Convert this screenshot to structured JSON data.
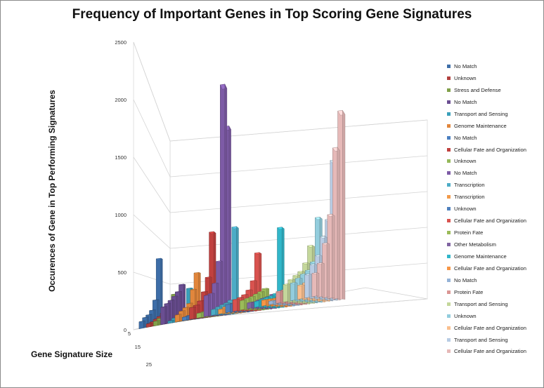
{
  "chart_data": {
    "type": "bar",
    "title": "Frequency of Important Genes in Top Scoring Gene Signatures",
    "ylabel": "Occurences of Gene in Top Performing Signatures",
    "xlabel": "Gene Signature Size",
    "ylim": [
      0,
      2500
    ],
    "grid": true,
    "legend_position": "right",
    "y_ticks": [
      "0",
      "500",
      "1000",
      "1500",
      "2000",
      "2500"
    ],
    "z_ticks": [
      "5",
      "15",
      "25"
    ],
    "series": [
      {
        "name": "No Match",
        "color": "#3e6ea8",
        "values": [
          680,
          250,
          150,
          110,
          90,
          60
        ]
      },
      {
        "name": "Unknown",
        "color": "#b2403e",
        "values": [
          160,
          110,
          80,
          60,
          40,
          30
        ]
      },
      {
        "name": "Stress and Defense",
        "color": "#81a04a",
        "values": [
          290,
          150,
          120,
          90,
          60,
          40
        ]
      },
      {
        "name": "No Match",
        "color": "#6a4e92",
        "values": [
          380,
          300,
          250,
          210,
          180,
          150
        ]
      },
      {
        "name": "Transport and Sensing",
        "color": "#3aa0ba",
        "values": [
          330,
          110,
          80,
          60,
          40,
          20
        ]
      },
      {
        "name": "Genome Maintenance",
        "color": "#e1863c",
        "values": [
          480,
          300,
          160,
          120,
          90,
          60
        ]
      },
      {
        "name": "No Match",
        "color": "#4a7fc0",
        "values": [
          120,
          90,
          70,
          50,
          40,
          30
        ]
      },
      {
        "name": "Cellular Fate and Organization",
        "color": "#c0413f",
        "values": [
          880,
          400,
          250,
          160,
          120,
          100
        ]
      },
      {
        "name": "Unknown",
        "color": "#95b95a",
        "values": [
          140,
          110,
          90,
          70,
          50,
          40
        ]
      },
      {
        "name": "No Match",
        "color": "#7d5ba6",
        "values": [
          1950,
          2290,
          520,
          300,
          200,
          180
        ]
      },
      {
        "name": "Transcription",
        "color": "#4cacc6",
        "values": [
          900,
          140,
          110,
          90,
          70,
          50
        ]
      },
      {
        "name": "Transcription",
        "color": "#f29a4a",
        "values": [
          160,
          120,
          100,
          80,
          60,
          40
        ]
      },
      {
        "name": "Unknown",
        "color": "#4f81bd",
        "values": [
          190,
          150,
          120,
          100,
          80,
          70
        ]
      },
      {
        "name": "Cellular Fate and Organization",
        "color": "#d9534f",
        "values": [
          600,
          300,
          200,
          150,
          120,
          100
        ]
      },
      {
        "name": "Protein Fate",
        "color": "#9bbb59",
        "values": [
          220,
          180,
          150,
          120,
          100,
          80
        ]
      },
      {
        "name": "Other Metabolism",
        "color": "#8064a2",
        "values": [
          150,
          120,
          100,
          80,
          60,
          50
        ]
      },
      {
        "name": "Genome Maintenance",
        "color": "#31b6c9",
        "values": [
          830,
          140,
          110,
          90,
          70,
          50
        ]
      },
      {
        "name": "Cellular Fate and Organization",
        "color": "#f79646",
        "values": [
          150,
          110,
          90,
          70,
          60,
          50
        ]
      },
      {
        "name": "No Match",
        "color": "#95b3d7",
        "values": [
          110,
          80,
          60,
          50,
          40,
          30
        ]
      },
      {
        "name": "Protein Fate",
        "color": "#da9694",
        "values": [
          250,
          210,
          180,
          150,
          120,
          100
        ]
      },
      {
        "name": "Transport and Sensing",
        "color": "#c4d79b",
        "values": [
          600,
          400,
          300,
          250,
          200,
          150
        ]
      },
      {
        "name": "Unknown",
        "color": "#93cddd",
        "values": [
          880,
          400,
          300,
          250,
          200,
          150
        ]
      },
      {
        "name": "Cellular Fate and Organization",
        "color": "#fabf8f",
        "values": [
          320,
          260,
          220,
          180,
          150,
          120
        ]
      },
      {
        "name": "Transport and Sensing",
        "color": "#b8cce4",
        "values": [
          1450,
          800,
          600,
          400,
          300,
          200
        ]
      },
      {
        "name": "Cellular Fate and Organization",
        "color": "#e6b9b8",
        "values": [
          1950,
          1500,
          800,
          500,
          300,
          200
        ]
      }
    ]
  }
}
